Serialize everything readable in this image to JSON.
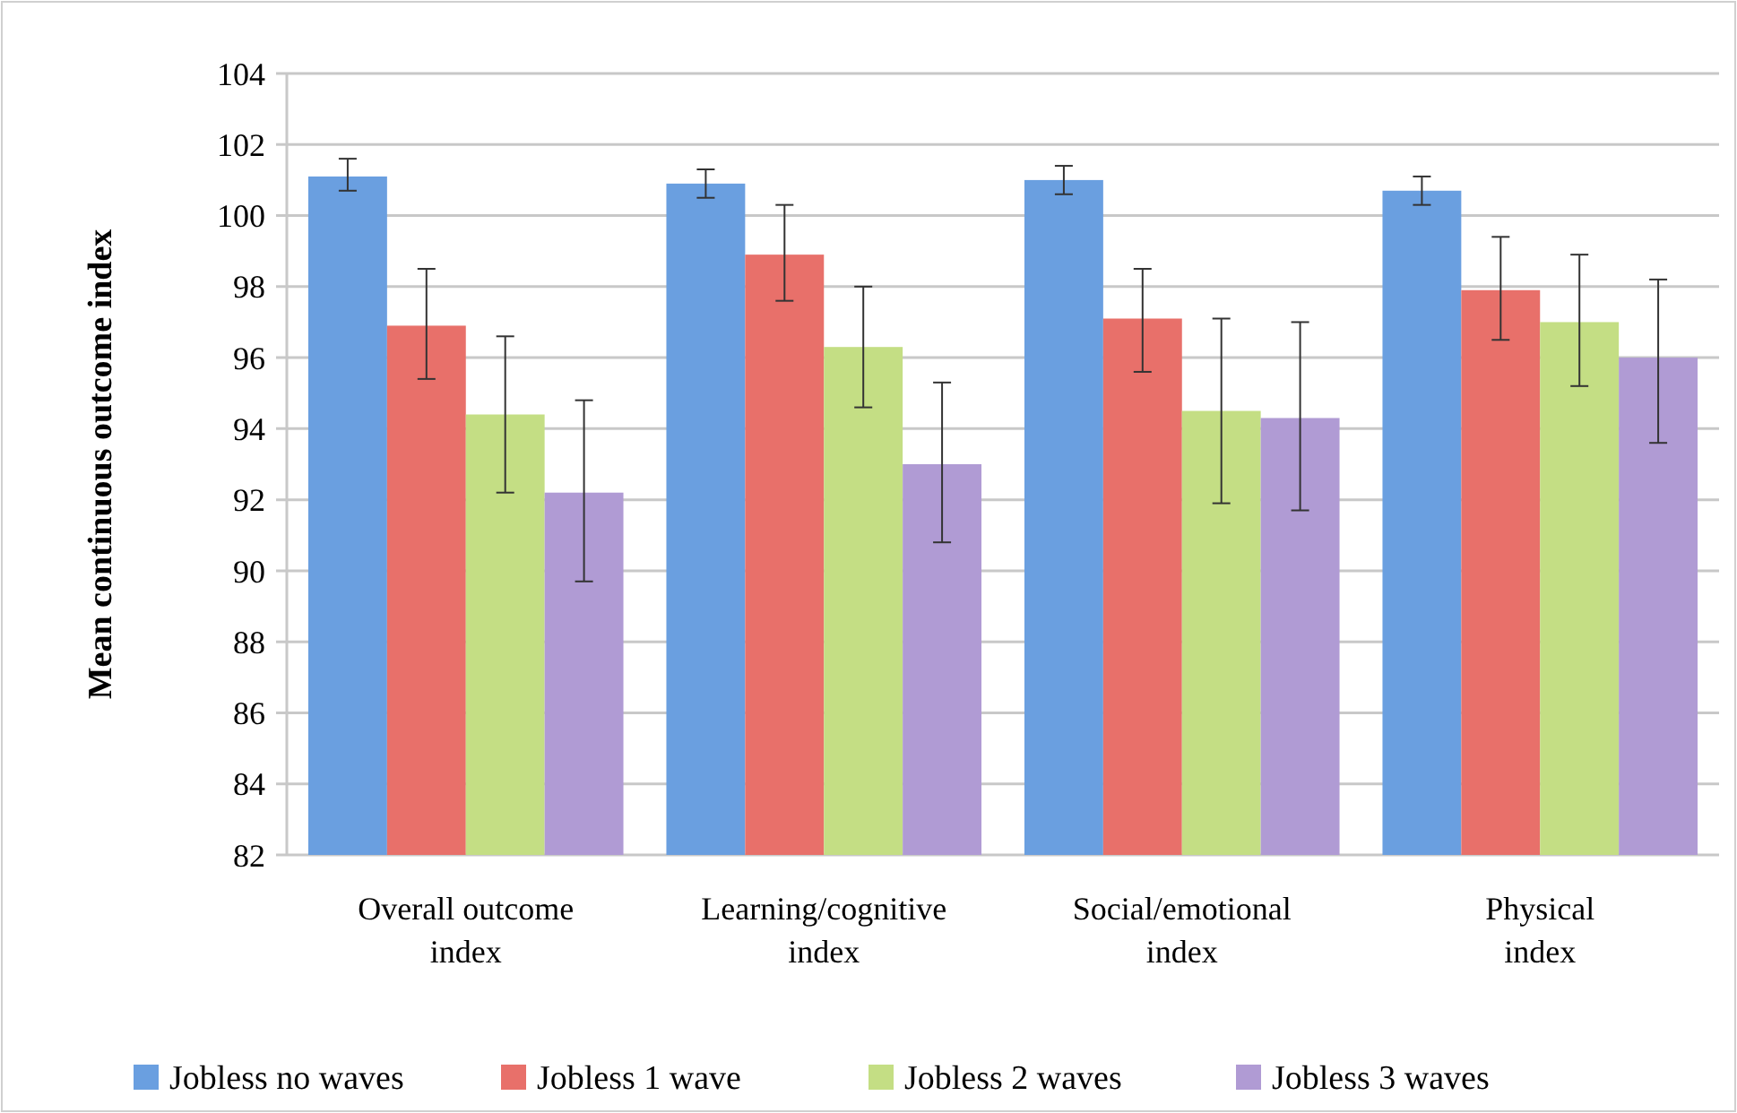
{
  "chart_data": {
    "type": "bar",
    "ylabel": "Mean continuous outcome index",
    "categories": [
      "Overall outcome index",
      "Learning/cognitive index",
      "Social/emotional index",
      "Physical index"
    ],
    "series": [
      {
        "name": "Jobless no waves",
        "color": "#6a9fe0",
        "values": [
          101.1,
          100.9,
          101.0,
          100.7
        ],
        "errors": [
          [
            100.7,
            101.6
          ],
          [
            100.5,
            101.3
          ],
          [
            100.6,
            101.4
          ],
          [
            100.3,
            101.1
          ]
        ]
      },
      {
        "name": "Jobless 1 wave",
        "color": "#e8706a",
        "values": [
          96.9,
          98.9,
          97.1,
          97.9
        ],
        "errors": [
          [
            95.4,
            98.5
          ],
          [
            97.6,
            100.3
          ],
          [
            95.6,
            98.5
          ],
          [
            96.5,
            99.4
          ]
        ]
      },
      {
        "name": "Jobless 2 waves",
        "color": "#c4de84",
        "values": [
          94.4,
          96.3,
          94.5,
          97.0
        ],
        "errors": [
          [
            92.2,
            96.6
          ],
          [
            94.6,
            98.0
          ],
          [
            91.9,
            97.1
          ],
          [
            95.2,
            98.9
          ]
        ]
      },
      {
        "name": "Jobless 3 waves",
        "color": "#b09bd4",
        "values": [
          92.2,
          93.0,
          94.3,
          96.0
        ],
        "errors": [
          [
            89.7,
            94.8
          ],
          [
            90.8,
            95.3
          ],
          [
            91.7,
            97.0
          ],
          [
            93.6,
            98.2
          ]
        ]
      }
    ],
    "ylim": [
      82,
      104
    ],
    "yticks": [
      82,
      84,
      86,
      88,
      90,
      92,
      94,
      96,
      98,
      100,
      102,
      104
    ],
    "grid": "y",
    "legend": "bottom"
  }
}
